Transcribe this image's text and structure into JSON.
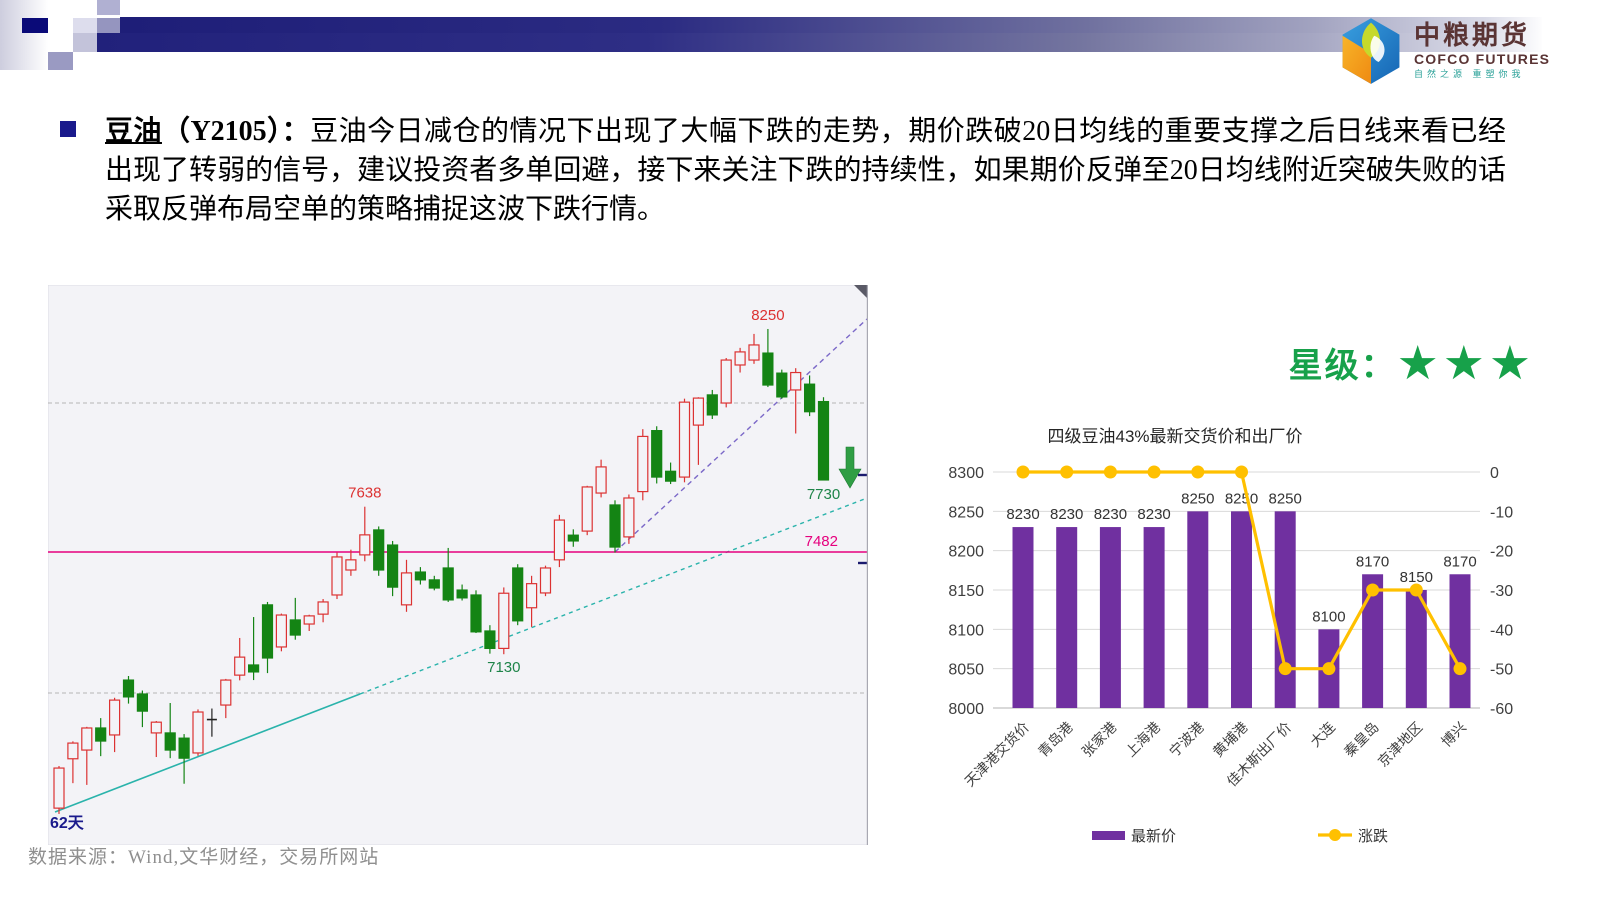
{
  "logo": {
    "cn": "中粮期货",
    "en": "COFCO FUTURES",
    "tagline": "自然之源  重塑你我"
  },
  "para": {
    "term": "豆油",
    "code": "（Y2105）：",
    "body": "豆油今日减仓的情况下出现了大幅下跌的走势，期价跌破20日均线的重要支撑之后日线来看已经出现了转弱的信号，建议投资者多单回避，接下来关注下跌的持续性，如果期价反弹至20日均线附近突破失败的话采取反弹布局空单的策略捕捉这波下跌行情。"
  },
  "rating": {
    "label": "星级：",
    "stars": "★★★"
  },
  "footer": {
    "text": "数据来源：Wind,文华财经，交易所网站"
  },
  "chart_data": [
    {
      "type": "candlestick",
      "annotations": {
        "peak_high": "8250",
        "local_high": "7638",
        "support": "7482",
        "local_low": "7130",
        "last_close": "7730",
        "x_axis": "62天"
      },
      "support_price": 7482,
      "marker_idx": {
        "peak": 51,
        "local_high": 22,
        "local_low": 32,
        "last": 55
      },
      "colors": {
        "up": "#dc3232",
        "down": "#148414",
        "doji": "#222222",
        "support": "#e6007e",
        "trend_teal": "#2ab3ab",
        "trend_violet": "#7b68c8",
        "arrow": "#2f9e44",
        "axis_text": "#1a1a8c",
        "bg": "#f3f3f7",
        "grid": "#b4b4b4"
      },
      "candles": [
        [
          6600,
          6745,
          6580,
          6738
        ],
        [
          6770,
          6830,
          6686,
          6824
        ],
        [
          6800,
          6880,
          6680,
          6876
        ],
        [
          6876,
          6910,
          6779,
          6831
        ],
        [
          6852,
          6980,
          6793,
          6972
        ],
        [
          7041,
          7055,
          6960,
          6983
        ],
        [
          6993,
          7005,
          6879,
          6934
        ],
        [
          6859,
          6900,
          6776,
          6896
        ],
        [
          6859,
          6962,
          6772,
          6800
        ],
        [
          6841,
          6855,
          6684,
          6772
        ],
        [
          6790,
          6940,
          6780,
          6931
        ],
        [
          6905,
          6943,
          6846,
          6905
        ],
        [
          6955,
          7045,
          6910,
          7041
        ],
        [
          7058,
          7186,
          7040,
          7120
        ],
        [
          7093,
          7258,
          7041,
          7069
        ],
        [
          7300,
          7310,
          7065,
          7117
        ],
        [
          7155,
          7270,
          7140,
          7265
        ],
        [
          7248,
          7324,
          7180,
          7196
        ],
        [
          7234,
          7266,
          7210,
          7262
        ],
        [
          7268,
          7320,
          7240,
          7310
        ],
        [
          7334,
          7480,
          7320,
          7465
        ],
        [
          7420,
          7490,
          7400,
          7455
        ],
        [
          7472,
          7638,
          7450,
          7541
        ],
        [
          7558,
          7570,
          7400,
          7420
        ],
        [
          7506,
          7520,
          7330,
          7361
        ],
        [
          7300,
          7455,
          7276,
          7410
        ],
        [
          7413,
          7430,
          7370,
          7386
        ],
        [
          7386,
          7400,
          7350,
          7358
        ],
        [
          7427,
          7496,
          7310,
          7317
        ],
        [
          7351,
          7370,
          7315,
          7324
        ],
        [
          7334,
          7350,
          7203,
          7207
        ],
        [
          7210,
          7230,
          7132,
          7150
        ],
        [
          7150,
          7360,
          7130,
          7340
        ],
        [
          7427,
          7440,
          7230,
          7245
        ],
        [
          7290,
          7400,
          7224,
          7373
        ],
        [
          7341,
          7435,
          7330,
          7427
        ],
        [
          7455,
          7610,
          7430,
          7592
        ],
        [
          7540,
          7560,
          7500,
          7520
        ],
        [
          7554,
          7710,
          7540,
          7706
        ],
        [
          7685,
          7800,
          7670,
          7775
        ],
        [
          7644,
          7660,
          7480,
          7499
        ],
        [
          7534,
          7680,
          7510,
          7668
        ],
        [
          7690,
          7905,
          7660,
          7880
        ],
        [
          7900,
          7915,
          7718,
          7740
        ],
        [
          7760,
          7790,
          7716,
          7726
        ],
        [
          7740,
          8010,
          7722,
          7998
        ],
        [
          7919,
          8015,
          7782,
          8012
        ],
        [
          8023,
          8040,
          7940,
          7954
        ],
        [
          7995,
          8150,
          7980,
          8143
        ],
        [
          8126,
          8185,
          8100,
          8171
        ],
        [
          8143,
          8233,
          8130,
          8195
        ],
        [
          8167,
          8250,
          8050,
          8057
        ],
        [
          8098,
          8110,
          8010,
          8016
        ],
        [
          8040,
          8115,
          7890,
          8100
        ],
        [
          8060,
          8090,
          7950,
          7965
        ],
        [
          8000,
          8015,
          7730,
          7730
        ]
      ]
    },
    {
      "type": "bar+line",
      "title": "四级豆油43%最新交货价和出厂价",
      "categories": [
        "天津港交货价",
        "青岛港",
        "张家港",
        "上海港",
        "宁波港",
        "黄埔港",
        "佳木斯出厂价",
        "大连",
        "秦皇岛",
        "京津地区",
        "博兴"
      ],
      "series": [
        {
          "name": "最新价",
          "kind": "bar",
          "color": "#7030A0",
          "values": [
            8230,
            8230,
            8230,
            8230,
            8250,
            8250,
            8250,
            8100,
            8170,
            8150,
            8170
          ]
        },
        {
          "name": "涨跌",
          "kind": "line",
          "color": "#FFC000",
          "values": [
            0,
            0,
            0,
            0,
            0,
            0,
            -50,
            -50,
            -30,
            -30,
            -50
          ]
        }
      ],
      "y_left": {
        "min": 8000,
        "max": 8300,
        "step": 50
      },
      "y_right": {
        "min": -60,
        "max": 0,
        "step": 10
      },
      "grid_color": "#d9d9d9",
      "label_color": "#3f3f3f"
    }
  ]
}
